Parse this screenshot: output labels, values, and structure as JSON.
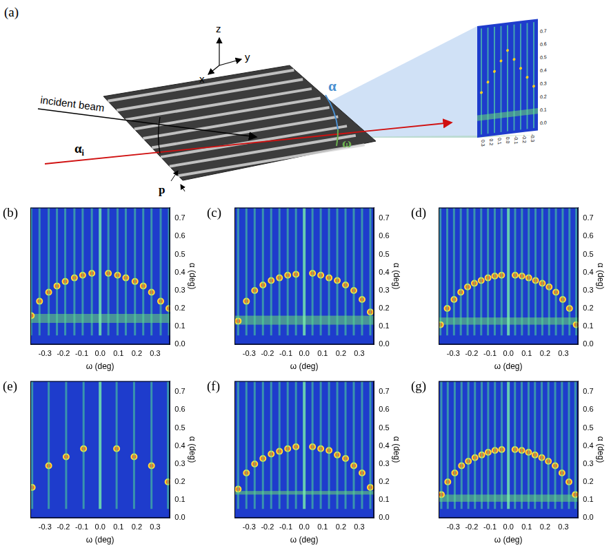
{
  "schematic": {
    "label": "(a)",
    "axes": [
      "z",
      "y",
      "x"
    ],
    "incident_beam": "incident beam",
    "incidence_angle": {
      "symbol": "α",
      "subscript": "i"
    },
    "exit_angle": "α",
    "in_plane_angle": "ω",
    "period": "p",
    "detector_x_ticks": [
      "0.3",
      "0.2",
      "0.1",
      "0.0",
      "-0.1",
      "-0.2",
      "-0.3"
    ],
    "detector_y_ticks": [
      "0.0",
      "0.1",
      "0.2",
      "0.3",
      "0.4",
      "0.5",
      "0.6",
      "0.7"
    ]
  },
  "chart_data": [
    {
      "type": "scatter",
      "label": "(b)",
      "x_label": "ω (deg)",
      "y_label": "α (deg)",
      "xlim": [
        -0.38,
        0.38
      ],
      "ylim": [
        0,
        0.76
      ],
      "xticks": [
        -0.3,
        -0.2,
        -0.1,
        {
          "value": 0,
          "label": "0.0"
        },
        0.1,
        0.2,
        0.3
      ],
      "yticks": [
        {
          "value": 0,
          "label": "0.0"
        },
        0.1,
        0.2,
        0.3,
        0.4,
        0.5,
        0.6,
        0.7
      ],
      "grid": false,
      "rods": {
        "x": [
          -0.375,
          -0.33,
          -0.28,
          -0.235,
          -0.19,
          -0.14,
          -0.095,
          -0.045,
          0,
          0.045,
          0.095,
          0.14,
          0.19,
          0.235,
          0.28,
          0.33,
          0.375
        ],
        "alpha_range": [
          0.05,
          0.76
        ]
      },
      "peaks": {
        "x": [
          -0.375,
          -0.33,
          -0.28,
          -0.235,
          -0.19,
          -0.14,
          -0.095,
          -0.045,
          0.045,
          0.095,
          0.14,
          0.19,
          0.235,
          0.28,
          0.33,
          0.375
        ],
        "y": [
          0.16,
          0.24,
          0.29,
          0.325,
          0.35,
          0.37,
          0.385,
          0.395,
          0.395,
          0.385,
          0.37,
          0.35,
          0.325,
          0.29,
          0.24,
          0.2
        ]
      },
      "yoneda_band": [
        0.12,
        0.17
      ]
    },
    {
      "type": "scatter",
      "label": "(c)",
      "x_label": "ω (deg)",
      "y_label": "α (deg)",
      "xlim": [
        -0.38,
        0.38
      ],
      "ylim": [
        0,
        0.76
      ],
      "xticks": [
        -0.3,
        -0.2,
        -0.1,
        {
          "value": 0,
          "label": "0.0"
        },
        0.1,
        0.2,
        0.3
      ],
      "yticks": [
        {
          "value": 0,
          "label": "0.0"
        },
        0.1,
        0.2,
        0.3,
        0.4,
        0.5,
        0.6,
        0.7
      ],
      "grid": false,
      "rods": {
        "x": [
          -0.36,
          -0.315,
          -0.27,
          -0.225,
          -0.18,
          -0.135,
          -0.09,
          -0.045,
          0,
          0.045,
          0.09,
          0.135,
          0.18,
          0.225,
          0.27,
          0.315,
          0.36
        ],
        "alpha_range": [
          0.05,
          0.76
        ]
      },
      "peaks": {
        "x": [
          -0.36,
          -0.315,
          -0.27,
          -0.225,
          -0.18,
          -0.135,
          -0.09,
          -0.045,
          0.045,
          0.09,
          0.135,
          0.18,
          0.225,
          0.27,
          0.315,
          0.36
        ],
        "y": [
          0.13,
          0.24,
          0.3,
          0.33,
          0.355,
          0.37,
          0.385,
          0.39,
          0.395,
          0.385,
          0.37,
          0.355,
          0.33,
          0.3,
          0.25,
          0.18
        ]
      },
      "yoneda_band": [
        0.11,
        0.16
      ]
    },
    {
      "type": "scatter",
      "label": "(d)",
      "x_label": "ω (deg)",
      "y_label": "α (deg)",
      "xlim": [
        -0.38,
        0.38
      ],
      "ylim": [
        0,
        0.76
      ],
      "xticks": [
        -0.3,
        -0.2,
        -0.1,
        {
          "value": 0,
          "label": "0.0"
        },
        0.1,
        0.2,
        0.3
      ],
      "yticks": [
        {
          "value": 0,
          "label": "0.0"
        },
        0.1,
        0.2,
        0.3,
        0.4,
        0.5,
        0.6,
        0.7
      ],
      "grid": false,
      "rods": {
        "x": [
          -0.37,
          -0.333,
          -0.296,
          -0.259,
          -0.222,
          -0.185,
          -0.148,
          -0.111,
          -0.074,
          -0.037,
          0,
          0.037,
          0.074,
          0.111,
          0.148,
          0.185,
          0.222,
          0.259,
          0.296,
          0.333,
          0.37
        ],
        "alpha_range": [
          0.05,
          0.76
        ]
      },
      "peaks": {
        "x": [
          -0.37,
          -0.333,
          -0.296,
          -0.259,
          -0.222,
          -0.185,
          -0.148,
          -0.111,
          -0.074,
          -0.037,
          0.037,
          0.074,
          0.111,
          0.148,
          0.185,
          0.222,
          0.259,
          0.296,
          0.333,
          0.37
        ],
        "y": [
          0.11,
          0.2,
          0.25,
          0.29,
          0.32,
          0.34,
          0.355,
          0.37,
          0.38,
          0.385,
          0.385,
          0.38,
          0.37,
          0.355,
          0.34,
          0.32,
          0.29,
          0.25,
          0.2,
          0.11
        ]
      },
      "yoneda_band": [
        0.11,
        0.15
      ]
    },
    {
      "type": "scatter",
      "label": "(e)",
      "x_label": "ω (deg)",
      "y_label": "α (deg)",
      "xlim": [
        -0.38,
        0.38
      ],
      "ylim": [
        0,
        0.76
      ],
      "xticks": [
        -0.3,
        -0.2,
        -0.1,
        {
          "value": 0,
          "label": "0.0"
        },
        0.1,
        0.2,
        0.3
      ],
      "yticks": [
        {
          "value": 0,
          "label": "0.0"
        },
        0.1,
        0.2,
        0.3,
        0.4,
        0.5,
        0.6,
        0.7
      ],
      "grid": false,
      "rods": {
        "x": [
          -0.37,
          -0.28,
          -0.185,
          -0.09,
          0,
          0.09,
          0.185,
          0.28,
          0.37
        ],
        "alpha_range": [
          0.05,
          0.76
        ]
      },
      "peaks": {
        "x": [
          -0.37,
          -0.28,
          -0.185,
          -0.09,
          0.09,
          0.185,
          0.28,
          0.37
        ],
        "y": [
          0.17,
          0.29,
          0.34,
          0.385,
          0.385,
          0.34,
          0.29,
          0.2
        ]
      }
    },
    {
      "type": "scatter",
      "label": "(f)",
      "x_label": "ω (deg)",
      "y_label": "α (deg)",
      "xlim": [
        -0.38,
        0.38
      ],
      "ylim": [
        0,
        0.76
      ],
      "xticks": [
        -0.3,
        -0.2,
        -0.1,
        {
          "value": 0,
          "label": "0.0"
        },
        0.1,
        0.2,
        0.3
      ],
      "yticks": [
        {
          "value": 0,
          "label": "0.0"
        },
        0.1,
        0.2,
        0.3,
        0.4,
        0.5,
        0.6,
        0.7
      ],
      "grid": false,
      "rods": {
        "x": [
          -0.36,
          -0.315,
          -0.27,
          -0.225,
          -0.18,
          -0.135,
          -0.09,
          -0.045,
          0,
          0.045,
          0.09,
          0.135,
          0.18,
          0.225,
          0.27,
          0.315,
          0.36
        ],
        "alpha_range": [
          0.05,
          0.76
        ]
      },
      "peaks": {
        "x": [
          -0.36,
          -0.315,
          -0.27,
          -0.225,
          -0.18,
          -0.135,
          -0.09,
          -0.045,
          0.045,
          0.09,
          0.135,
          0.18,
          0.225,
          0.27,
          0.315,
          0.36
        ],
        "y": [
          0.16,
          0.25,
          0.3,
          0.33,
          0.355,
          0.37,
          0.385,
          0.395,
          0.395,
          0.385,
          0.375,
          0.35,
          0.33,
          0.29,
          0.25,
          0.17
        ]
      },
      "yoneda_band": [
        0.13,
        0.15
      ]
    },
    {
      "type": "scatter",
      "label": "(g)",
      "x_label": "ω (deg)",
      "y_label": "α (deg)",
      "xlim": [
        -0.38,
        0.38
      ],
      "ylim": [
        0,
        0.76
      ],
      "xticks": [
        -0.3,
        -0.2,
        -0.1,
        {
          "value": 0,
          "label": "0.0"
        },
        0.1,
        0.2,
        0.3
      ],
      "yticks": [
        {
          "value": 0,
          "label": "0.0"
        },
        0.1,
        0.2,
        0.3,
        0.4,
        0.5,
        0.6,
        0.7
      ],
      "grid": false,
      "rods": {
        "x": [
          -0.365,
          -0.33,
          -0.292,
          -0.255,
          -0.218,
          -0.182,
          -0.145,
          -0.11,
          -0.073,
          -0.036,
          0,
          0.036,
          0.073,
          0.11,
          0.145,
          0.182,
          0.218,
          0.255,
          0.292,
          0.33,
          0.365
        ],
        "alpha_range": [
          0.05,
          0.76
        ]
      },
      "peaks": {
        "x": [
          -0.365,
          -0.33,
          -0.292,
          -0.255,
          -0.218,
          -0.182,
          -0.145,
          -0.11,
          -0.073,
          -0.036,
          0.036,
          0.073,
          0.11,
          0.145,
          0.182,
          0.218,
          0.255,
          0.292,
          0.33,
          0.365
        ],
        "y": [
          0.13,
          0.2,
          0.25,
          0.29,
          0.315,
          0.335,
          0.35,
          0.365,
          0.375,
          0.38,
          0.38,
          0.375,
          0.365,
          0.35,
          0.335,
          0.315,
          0.29,
          0.25,
          0.2,
          0.13
        ]
      },
      "yoneda_band": [
        0.09,
        0.13
      ]
    }
  ]
}
